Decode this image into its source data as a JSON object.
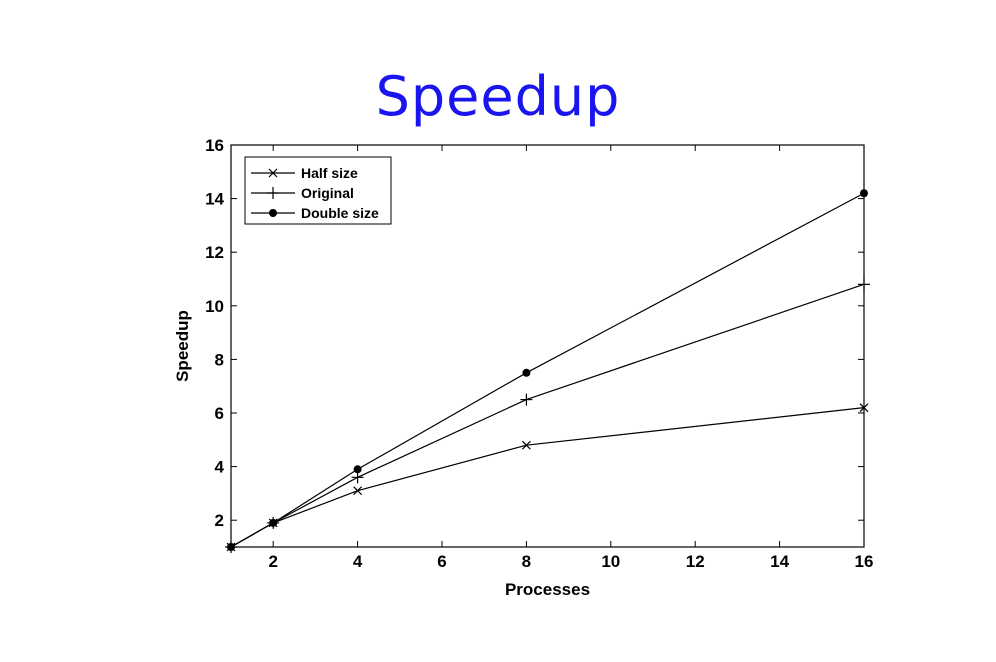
{
  "page": {
    "title": "Speedup",
    "title_color": "#1a14f0"
  },
  "chart_data": {
    "type": "line",
    "title": "",
    "xlabel": "Processes",
    "ylabel": "Speedup",
    "xlim": [
      1,
      16
    ],
    "ylim": [
      1,
      16
    ],
    "xticks": [
      2,
      4,
      6,
      8,
      10,
      12,
      14,
      16
    ],
    "yticks": [
      2,
      4,
      6,
      8,
      10,
      12,
      14,
      16
    ],
    "grid": false,
    "legend_position": "top-left",
    "x": [
      1,
      2,
      4,
      8,
      16
    ],
    "series": [
      {
        "name": "Half size",
        "marker": "x",
        "values": [
          1,
          1.9,
          3.1,
          4.8,
          6.2
        ]
      },
      {
        "name": "Original",
        "marker": "+",
        "values": [
          1,
          1.9,
          3.6,
          6.5,
          10.8
        ]
      },
      {
        "name": "Double size",
        "marker": "dot",
        "values": [
          1,
          1.9,
          3.9,
          7.5,
          14.2
        ]
      }
    ],
    "line_color": "#000000"
  }
}
